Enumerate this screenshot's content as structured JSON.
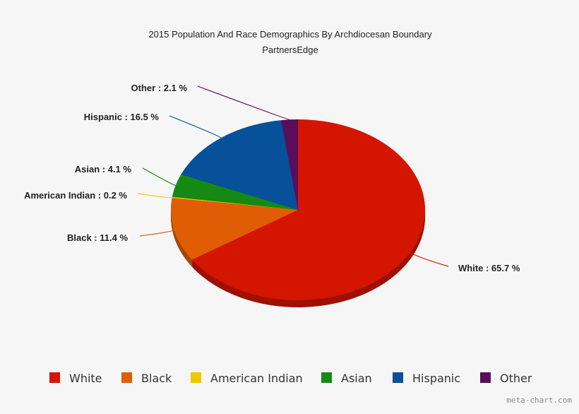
{
  "chart_data": {
    "type": "pie",
    "title": "2015 Population And Race Demographics By Archdiocesan Boundary",
    "subtitle": "PartnersEdge",
    "categories": [
      "White",
      "Black",
      "American Indian",
      "Asian",
      "Hispanic",
      "Other"
    ],
    "values": [
      65.7,
      11.4,
      0.2,
      4.1,
      16.5,
      2.1
    ],
    "labels": [
      "White : 65.7 %",
      "Black : 11.4 %",
      "American Indian : 0.2 %",
      "Asian : 4.1 %",
      "Hispanic : 16.5 %",
      "Other : 2.1 %"
    ],
    "colors": [
      "#d41500",
      "#e05d05",
      "#eec800",
      "#148a14",
      "#07509a",
      "#5a0d5a"
    ],
    "three_d": true,
    "legend_position": "bottom"
  },
  "watermark": "meta-chart.com"
}
